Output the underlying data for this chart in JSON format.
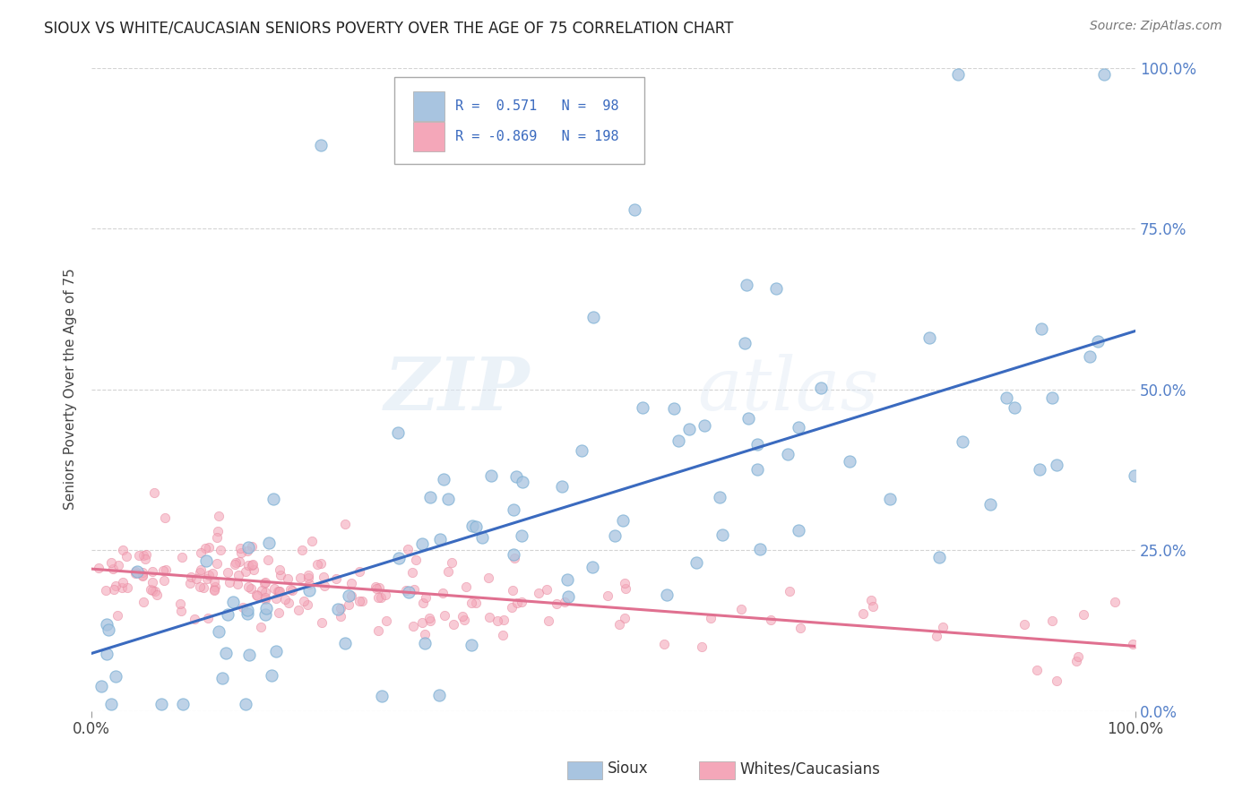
{
  "title": "SIOUX VS WHITE/CAUCASIAN SENIORS POVERTY OVER THE AGE OF 75 CORRELATION CHART",
  "source": "Source: ZipAtlas.com",
  "ylabel": "Seniors Poverty Over the Age of 75",
  "sioux_R": 0.571,
  "sioux_N": 98,
  "white_R": -0.869,
  "white_N": 198,
  "sioux_color": "#a8c4e0",
  "sioux_edge_color": "#7aafd4",
  "white_color": "#f4a7b9",
  "white_edge_color": "#e88aa0",
  "sioux_line_color": "#3a6abf",
  "white_line_color": "#e07090",
  "background_color": "#ffffff",
  "grid_color": "#d0d0d0",
  "xlim": [
    0,
    1
  ],
  "ylim": [
    0,
    1
  ],
  "ytick_labels": [
    "0.0%",
    "25.0%",
    "50.0%",
    "75.0%",
    "100.0%"
  ],
  "ytick_values": [
    0,
    0.25,
    0.5,
    0.75,
    1.0
  ],
  "xtick_labels": [
    "0.0%",
    "100.0%"
  ],
  "xtick_values": [
    0,
    1.0
  ],
  "watermark_zip": "ZIP",
  "watermark_atlas": "atlas",
  "legend_R_color": "#3a6abf",
  "legend_sioux_box": "#a8c4e0",
  "legend_white_box": "#f4a7b9"
}
